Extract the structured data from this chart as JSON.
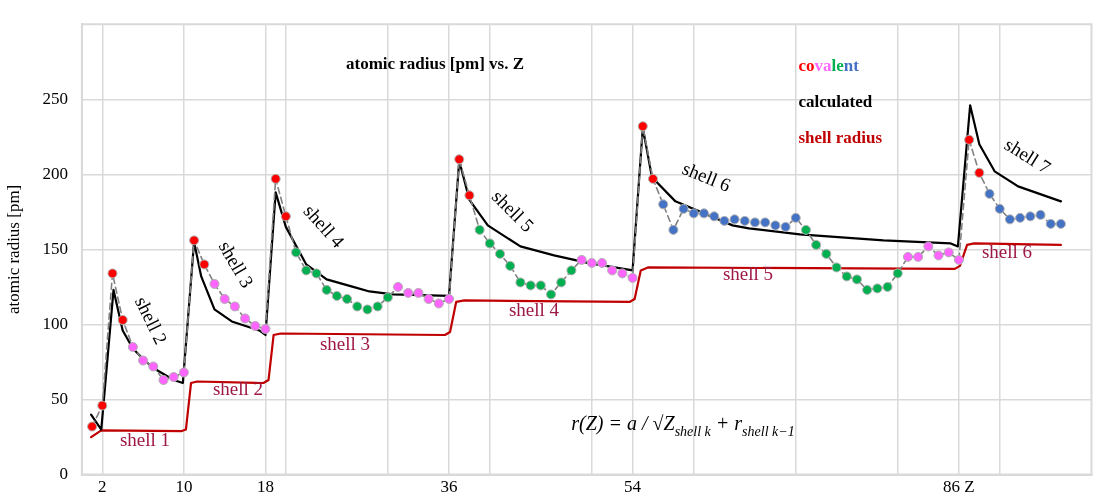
{
  "chart_data": {
    "type": "line",
    "title": "atomic radius [pm] vs. Z",
    "ylabel": "atomic radius [pm]",
    "xlim": [
      0,
      99
    ],
    "xticks": [
      2,
      10,
      18,
      {
        "value": 20,
        "label": null
      },
      {
        "value": 30,
        "label": null
      },
      36,
      {
        "value": 40,
        "label": null
      },
      {
        "value": 50,
        "label": null
      },
      54,
      {
        "value": 60,
        "label": null
      },
      {
        "value": 70,
        "label": null
      },
      {
        "value": 80,
        "label": null
      },
      {
        "value": 86,
        "label": "86 Z"
      },
      {
        "value": 90,
        "label": null
      }
    ],
    "ylim": [
      0,
      300
    ],
    "yticks": [
      0,
      50,
      100,
      150,
      200,
      250
    ],
    "grid": true,
    "legend": "top right",
    "series": [
      {
        "name": "covalent",
        "marker": "circle",
        "line_style": "dashed",
        "color": "#808080",
        "x": [
          1,
          2,
          3,
          4,
          5,
          6,
          7,
          8,
          9,
          10,
          11,
          12,
          13,
          14,
          15,
          16,
          17,
          18,
          19,
          20,
          21,
          22,
          23,
          24,
          25,
          26,
          27,
          28,
          29,
          30,
          31,
          32,
          33,
          34,
          35,
          36,
          37,
          38,
          39,
          40,
          41,
          42,
          43,
          44,
          45,
          46,
          47,
          48,
          49,
          50,
          51,
          52,
          53,
          54,
          55,
          56,
          57,
          58,
          59,
          60,
          61,
          62,
          63,
          64,
          65,
          66,
          67,
          68,
          69,
          70,
          71,
          72,
          73,
          74,
          75,
          76,
          77,
          78,
          79,
          80,
          81,
          82,
          83,
          84,
          85,
          86,
          87,
          88,
          89,
          90,
          91,
          92,
          93,
          94,
          95,
          96
        ],
        "values": [
          32,
          46,
          134,
          103,
          85,
          76,
          72,
          63,
          65,
          68,
          156,
          140,
          127,
          117,
          112,
          104,
          99,
          97,
          197,
          172,
          148,
          136,
          134,
          123,
          119,
          117,
          112,
          110,
          112,
          118,
          125,
          121,
          121,
          117,
          114,
          117,
          210,
          186,
          163,
          154,
          147,
          139,
          128,
          126,
          126,
          120,
          128,
          136,
          143,
          141,
          141,
          136,
          134,
          131,
          232,
          197,
          180,
          163,
          177,
          174,
          174,
          172,
          169,
          170,
          169,
          168,
          168,
          166,
          165,
          171,
          163,
          153,
          147,
          138,
          132,
          130,
          123,
          124,
          125,
          134,
          145,
          145,
          152,
          146,
          148,
          143,
          223,
          201,
          187,
          177,
          170,
          171,
          172,
          173,
          167,
          167
        ],
        "colors": [
          "#ff0000",
          "#ff0000",
          "#ff0000",
          "#ff0000",
          "#ff66ff",
          "#ff66ff",
          "#ff66ff",
          "#ff66ff",
          "#ff66ff",
          "#ff66ff",
          "#ff0000",
          "#ff0000",
          "#ff66ff",
          "#ff66ff",
          "#ff66ff",
          "#ff66ff",
          "#ff66ff",
          "#ff66ff",
          "#ff0000",
          "#ff0000",
          "#00b050",
          "#00b050",
          "#00b050",
          "#00b050",
          "#00b050",
          "#00b050",
          "#00b050",
          "#00b050",
          "#00b050",
          "#00b050",
          "#ff66ff",
          "#ff66ff",
          "#ff66ff",
          "#ff66ff",
          "#ff66ff",
          "#ff66ff",
          "#ff0000",
          "#ff0000",
          "#00b050",
          "#00b050",
          "#00b050",
          "#00b050",
          "#00b050",
          "#00b050",
          "#00b050",
          "#00b050",
          "#00b050",
          "#00b050",
          "#ff66ff",
          "#ff66ff",
          "#ff66ff",
          "#ff66ff",
          "#ff66ff",
          "#ff66ff",
          "#ff0000",
          "#ff0000",
          "#4472c4",
          "#4472c4",
          "#4472c4",
          "#4472c4",
          "#4472c4",
          "#4472c4",
          "#4472c4",
          "#4472c4",
          "#4472c4",
          "#4472c4",
          "#4472c4",
          "#4472c4",
          "#4472c4",
          "#4472c4",
          "#00b050",
          "#00b050",
          "#00b050",
          "#00b050",
          "#00b050",
          "#00b050",
          "#00b050",
          "#00b050",
          "#00b050",
          "#00b050",
          "#ff66ff",
          "#ff66ff",
          "#ff66ff",
          "#ff66ff",
          "#ff66ff",
          "#ff66ff",
          "#ff0000",
          "#ff0000",
          "#4472c4",
          "#4472c4",
          "#4472c4",
          "#4472c4",
          "#4472c4",
          "#4472c4",
          "#4472c4",
          "#4472c4"
        ]
      },
      {
        "name": "calculated",
        "marker": "none",
        "color": "#000000",
        "x": [
          0.9,
          1.9,
          3.1,
          4,
          5,
          6,
          7,
          8,
          9,
          9.9,
          11,
          11.7,
          13,
          14.7,
          17.4,
          18,
          19,
          20,
          22,
          24,
          26.6,
          28.2,
          30.5,
          36,
          37,
          38,
          39.8,
          43,
          46.3,
          49.6,
          54,
          55,
          55.9,
          58.2,
          63.8,
          65.4,
          70.4,
          78.6,
          85.2,
          85.9,
          87.1,
          88,
          89.5,
          91.8,
          96
        ],
        "values": [
          40,
          30,
          123,
          96,
          84,
          77,
          71,
          67,
          63,
          61,
          155,
          132,
          110,
          102,
          96,
          93,
          188,
          165,
          140,
          130,
          125,
          122,
          120,
          119,
          209,
          183,
          166,
          152,
          146,
          141,
          136,
          231,
          198,
          182,
          166,
          164,
          160,
          156,
          154,
          152,
          246,
          220,
          202,
          192,
          182
        ]
      },
      {
        "name": "shell radius",
        "marker": "none",
        "color": "#c00000",
        "x": [
          0.9,
          1.9,
          9.8,
          10.2,
          10.7,
          11.3,
          17.8,
          18.3,
          18.8,
          19.5,
          35.6,
          36.1,
          36.7,
          37.5,
          53.7,
          54.2,
          54.8,
          55.5,
          85.6,
          86.1,
          86.8,
          87.5,
          96
        ],
        "values": [
          25,
          29.5,
          29,
          30,
          61,
          62,
          61,
          63,
          93,
          94,
          93,
          95,
          115,
          116,
          115,
          117,
          136,
          138,
          137,
          139,
          153,
          154,
          153
        ]
      }
    ],
    "annotations": [
      "shell 1",
      "shell 2",
      "shell 2",
      "shell 3",
      "shell 3",
      "shell 4",
      "shell 4",
      "shell 5",
      "shell 5",
      "shell 6",
      "shell 6",
      "shell 7",
      "r(Z) = a / √Z$_{shell k}$ + r$_{shell k−1}$"
    ]
  }
}
